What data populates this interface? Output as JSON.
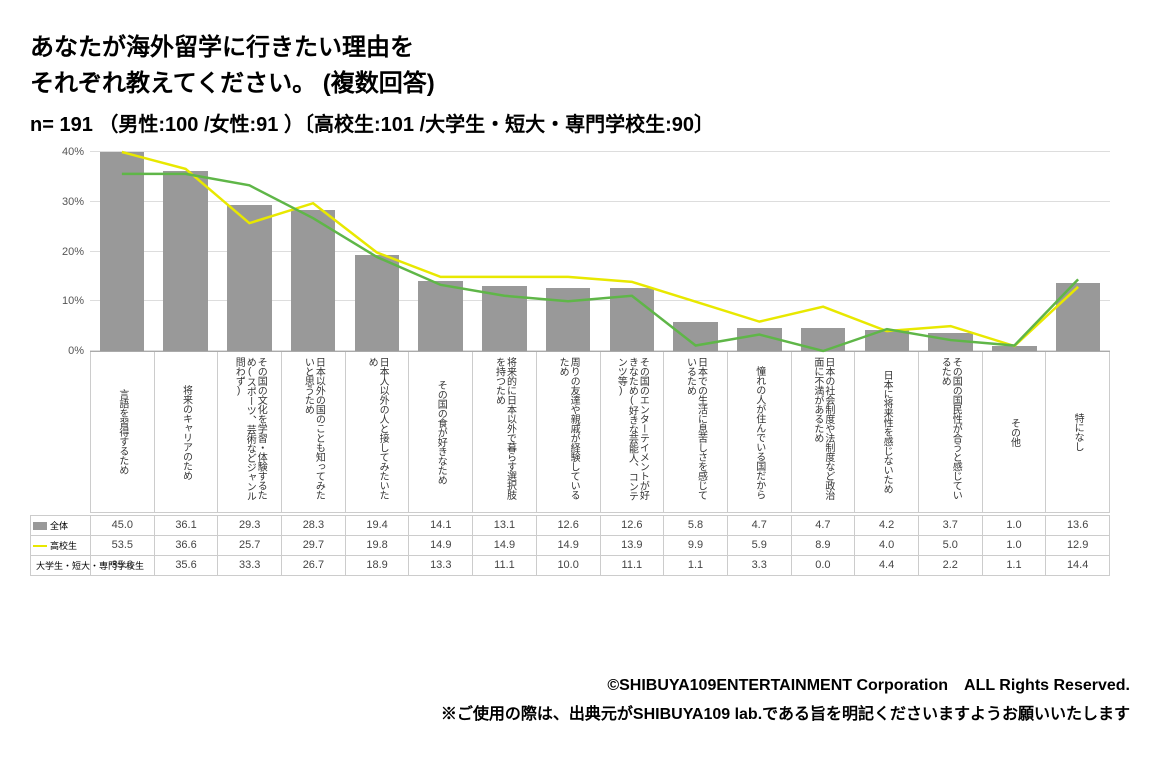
{
  "title_line1": "あなたが海外留学に行きたい理由を",
  "title_line2": "それぞれ教えてください。 (複数回答)",
  "subtitle": "n= 191 （男性:100 /女性:91 ）〔高校生:101 /大学生・短大・専門学校生:90〕",
  "chart": {
    "type": "bar+line",
    "ymax": 40,
    "ytick_step": 10,
    "ylabel_suffix": "%",
    "bar_color": "#999999",
    "grid_color": "#dddddd",
    "categories": [
      "言語を習得するため",
      "将来のキャリアのため",
      "その国の文化を学習・体験するため(スポーツ、芸術などジャンル問わず)",
      "日本以外の国のことも知ってみたいと思うため",
      "日本人以外の人と接してみたいため",
      "その国の食が好きなため",
      "将来的に日本以外で暮らす選択肢を持つため",
      "周りの友達や親戚が経験しているため",
      "その国のエンターテイメントが好きなため(好きな芸能人、コンテンツ等)",
      "日本での生活に息苦しさを感じているため",
      "憧れの人が住んでいる国だから",
      "日本の社会制度や法制度など政治面に不満があるため",
      "日本に将来性を感じないため",
      "その国の国民性が合うと感じているため",
      "その他",
      "特になし"
    ],
    "series": [
      {
        "name": "全体",
        "label": "全体",
        "type": "bar",
        "values": [
          45.0,
          36.1,
          29.3,
          28.3,
          19.4,
          14.1,
          13.1,
          12.6,
          12.6,
          5.8,
          4.7,
          4.7,
          4.2,
          3.7,
          1.0,
          13.6
        ]
      },
      {
        "name": "高校生",
        "label": "高校生",
        "type": "line",
        "color": "#e8e800",
        "line_width": 2.5,
        "values": [
          53.5,
          36.6,
          25.7,
          29.7,
          19.8,
          14.9,
          14.9,
          14.9,
          13.9,
          9.9,
          5.9,
          8.9,
          4.0,
          5.0,
          1.0,
          12.9
        ]
      },
      {
        "name": "大学生・短大・専門学校生",
        "label": "大学生・短大・専門学校生",
        "type": "line",
        "color": "#5fb648",
        "line_width": 2.5,
        "values": [
          35.6,
          35.6,
          33.3,
          26.7,
          18.9,
          13.3,
          11.1,
          10.0,
          11.1,
          1.1,
          3.3,
          0.0,
          4.4,
          2.2,
          1.1,
          14.4
        ]
      }
    ]
  },
  "footer_line1": "©SHIBUYA109ENTERTAINMENT Corporation　ALL Rights Reserved.",
  "footer_line2": "※ご使用の際は、出典元がSHIBUYA109 lab.である旨を明記くださいますようお願いいたします"
}
